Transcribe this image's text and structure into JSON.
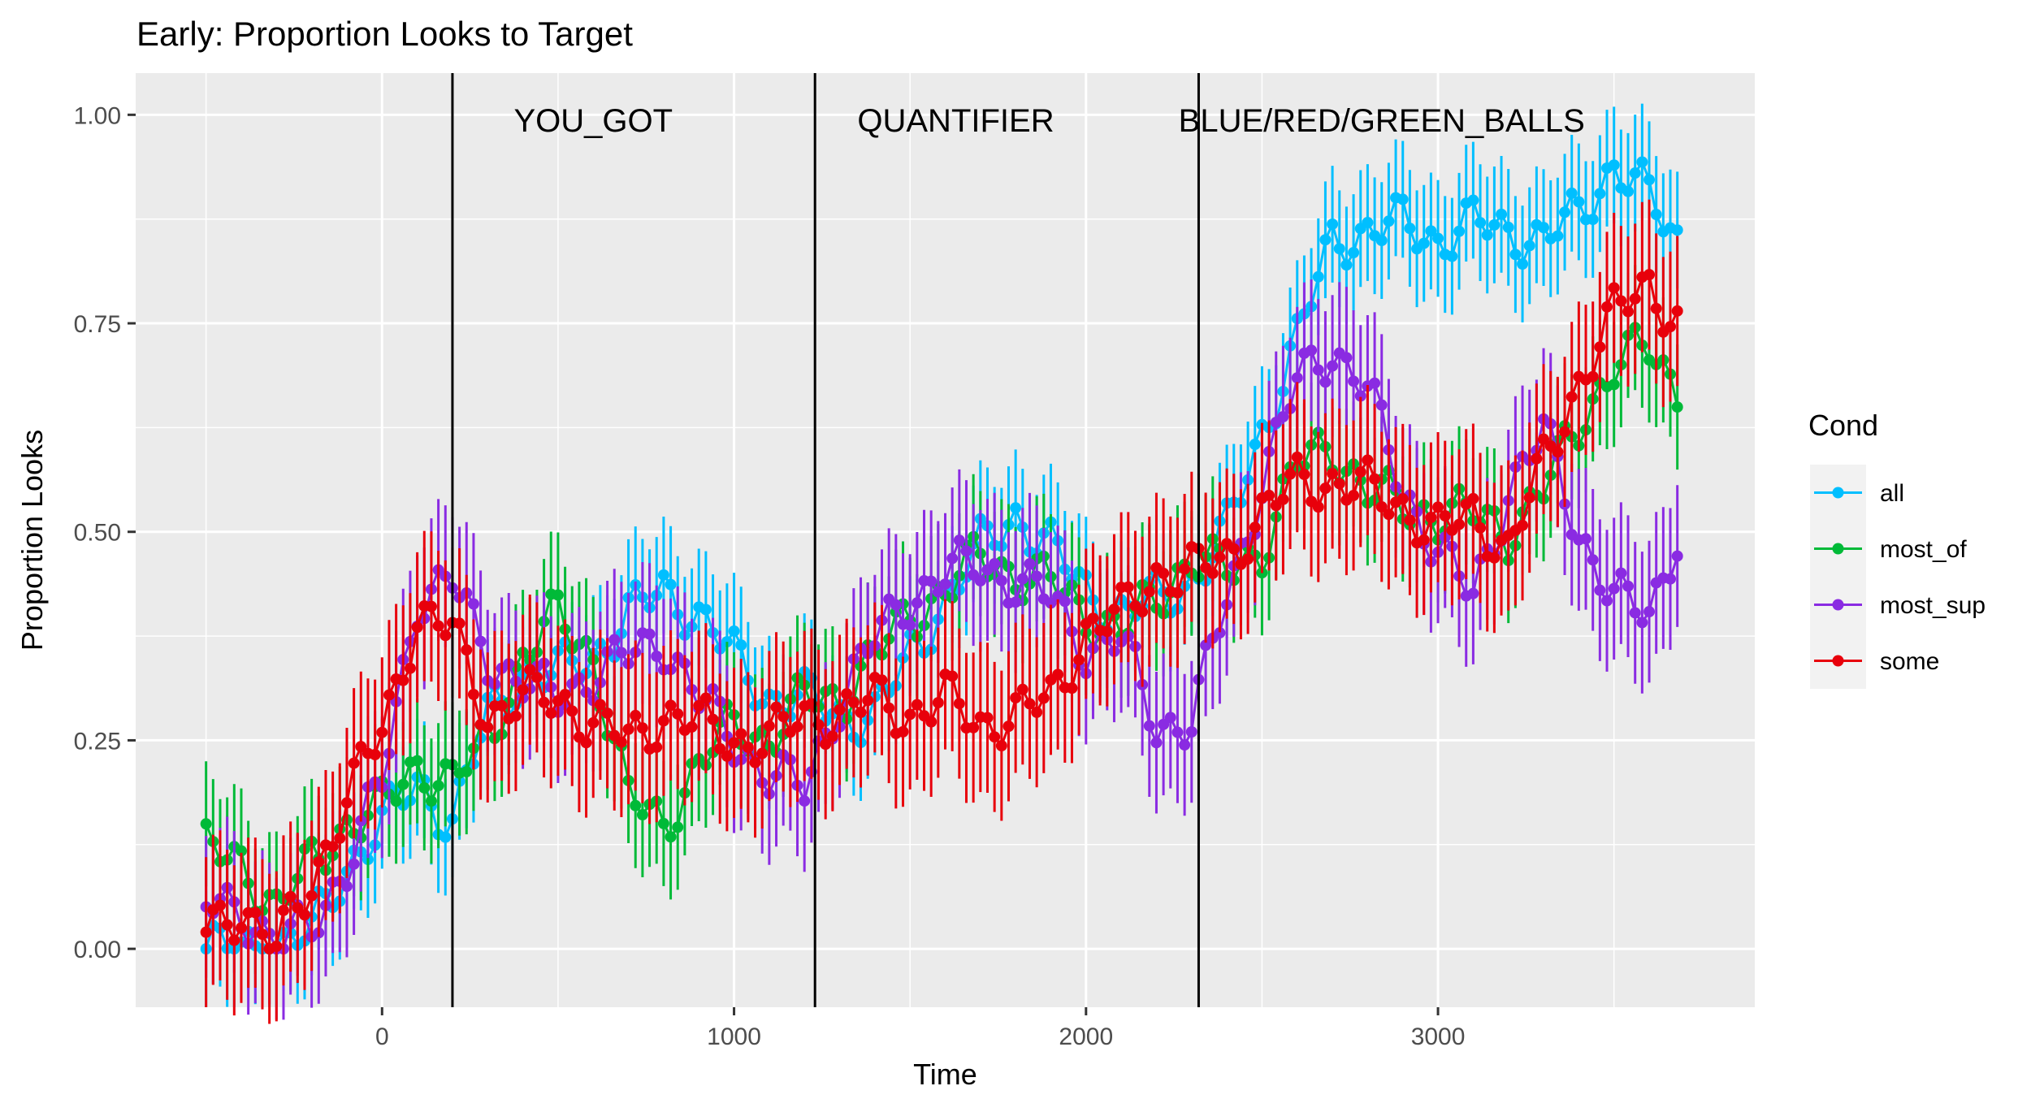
{
  "chart_data": {
    "type": "line",
    "title": "Early: Proportion Looks to Target",
    "xlabel": "Time",
    "ylabel": "Proportion Looks",
    "xlim": [
      -700,
      3900
    ],
    "ylim": [
      -0.07,
      1.05
    ],
    "x_ticks": [
      0,
      1000,
      2000,
      3000
    ],
    "y_ticks": [
      0.0,
      0.25,
      0.5,
      0.75,
      1.0
    ],
    "x_tick_labels": [
      "0",
      "1000",
      "2000",
      "3000"
    ],
    "y_tick_labels": [
      "0.00",
      "0.25",
      "0.50",
      "0.75",
      "1.00"
    ],
    "grid": true,
    "legend": {
      "title": "Cond",
      "position": "right",
      "entries": [
        "all",
        "most_of",
        "most_sup",
        "some"
      ]
    },
    "vlines": [
      200,
      1230,
      2320
    ],
    "region_labels": [
      {
        "x": 600,
        "y": 0.98,
        "text": "YOU_GOT"
      },
      {
        "x": 1630,
        "y": 0.98,
        "text": "QUANTIFIER"
      },
      {
        "x": 2840,
        "y": 0.98,
        "text": "BLUE/RED/GREEN_BALLS"
      }
    ],
    "x_start": -500,
    "x_step": 20,
    "series": [
      {
        "name": "all",
        "color": "#00BFFF",
        "err": 0.07,
        "knots": [
          [
            -500,
            0.0
          ],
          [
            -300,
            0.0
          ],
          [
            -200,
            0.02
          ],
          [
            -100,
            0.1
          ],
          [
            0,
            0.15
          ],
          [
            100,
            0.2
          ],
          [
            200,
            0.15
          ],
          [
            300,
            0.28
          ],
          [
            400,
            0.33
          ],
          [
            500,
            0.33
          ],
          [
            600,
            0.35
          ],
          [
            700,
            0.4
          ],
          [
            800,
            0.43
          ],
          [
            900,
            0.4
          ],
          [
            1000,
            0.35
          ],
          [
            1100,
            0.3
          ],
          [
            1200,
            0.3
          ],
          [
            1300,
            0.28
          ],
          [
            1400,
            0.28
          ],
          [
            1500,
            0.35
          ],
          [
            1600,
            0.42
          ],
          [
            1700,
            0.48
          ],
          [
            1800,
            0.52
          ],
          [
            1900,
            0.48
          ],
          [
            2000,
            0.43
          ],
          [
            2100,
            0.4
          ],
          [
            2200,
            0.42
          ],
          [
            2300,
            0.44
          ],
          [
            2400,
            0.5
          ],
          [
            2500,
            0.62
          ],
          [
            2600,
            0.73
          ],
          [
            2700,
            0.85
          ],
          [
            2800,
            0.86
          ],
          [
            2900,
            0.87
          ],
          [
            3000,
            0.85
          ],
          [
            3100,
            0.87
          ],
          [
            3200,
            0.86
          ],
          [
            3300,
            0.85
          ],
          [
            3400,
            0.88
          ],
          [
            3500,
            0.94
          ],
          [
            3600,
            0.9
          ],
          [
            3680,
            0.85
          ]
        ]
      },
      {
        "name": "most_of",
        "color": "#00BA38",
        "err": 0.075,
        "knots": [
          [
            -500,
            0.12
          ],
          [
            -400,
            0.1
          ],
          [
            -300,
            0.05
          ],
          [
            -200,
            0.1
          ],
          [
            -100,
            0.15
          ],
          [
            0,
            0.17
          ],
          [
            100,
            0.22
          ],
          [
            200,
            0.2
          ],
          [
            300,
            0.25
          ],
          [
            400,
            0.35
          ],
          [
            500,
            0.4
          ],
          [
            600,
            0.35
          ],
          [
            700,
            0.18
          ],
          [
            800,
            0.15
          ],
          [
            900,
            0.22
          ],
          [
            1000,
            0.27
          ],
          [
            1100,
            0.25
          ],
          [
            1200,
            0.3
          ],
          [
            1300,
            0.3
          ],
          [
            1400,
            0.35
          ],
          [
            1500,
            0.4
          ],
          [
            1600,
            0.43
          ],
          [
            1700,
            0.47
          ],
          [
            1800,
            0.45
          ],
          [
            1900,
            0.44
          ],
          [
            2000,
            0.4
          ],
          [
            2100,
            0.38
          ],
          [
            2200,
            0.42
          ],
          [
            2300,
            0.47
          ],
          [
            2400,
            0.45
          ],
          [
            2500,
            0.48
          ],
          [
            2600,
            0.58
          ],
          [
            2700,
            0.6
          ],
          [
            2800,
            0.55
          ],
          [
            2900,
            0.53
          ],
          [
            3000,
            0.52
          ],
          [
            3100,
            0.52
          ],
          [
            3200,
            0.5
          ],
          [
            3300,
            0.55
          ],
          [
            3400,
            0.63
          ],
          [
            3500,
            0.7
          ],
          [
            3600,
            0.72
          ],
          [
            3680,
            0.67
          ]
        ]
      },
      {
        "name": "most_sup",
        "color": "#8A2BE2",
        "err": 0.085,
        "knots": [
          [
            -500,
            0.05
          ],
          [
            -400,
            0.05
          ],
          [
            -300,
            0.0
          ],
          [
            -200,
            0.03
          ],
          [
            -100,
            0.1
          ],
          [
            0,
            0.2
          ],
          [
            100,
            0.42
          ],
          [
            200,
            0.44
          ],
          [
            300,
            0.35
          ],
          [
            400,
            0.32
          ],
          [
            500,
            0.3
          ],
          [
            600,
            0.33
          ],
          [
            700,
            0.35
          ],
          [
            800,
            0.37
          ],
          [
            900,
            0.3
          ],
          [
            1000,
            0.25
          ],
          [
            1100,
            0.21
          ],
          [
            1200,
            0.19
          ],
          [
            1300,
            0.3
          ],
          [
            1400,
            0.37
          ],
          [
            1500,
            0.42
          ],
          [
            1600,
            0.45
          ],
          [
            1700,
            0.46
          ],
          [
            1800,
            0.44
          ],
          [
            1900,
            0.42
          ],
          [
            2000,
            0.36
          ],
          [
            2100,
            0.37
          ],
          [
            2200,
            0.27
          ],
          [
            2300,
            0.27
          ],
          [
            2400,
            0.42
          ],
          [
            2500,
            0.56
          ],
          [
            2600,
            0.68
          ],
          [
            2700,
            0.72
          ],
          [
            2800,
            0.67
          ],
          [
            2900,
            0.55
          ],
          [
            3000,
            0.48
          ],
          [
            3100,
            0.42
          ],
          [
            3200,
            0.55
          ],
          [
            3300,
            0.62
          ],
          [
            3400,
            0.5
          ],
          [
            3500,
            0.42
          ],
          [
            3600,
            0.4
          ],
          [
            3680,
            0.5
          ]
        ]
      },
      {
        "name": "some",
        "color": "#E8000B",
        "err": 0.09,
        "knots": [
          [
            -500,
            0.02
          ],
          [
            -400,
            0.05
          ],
          [
            -300,
            0.0
          ],
          [
            -200,
            0.08
          ],
          [
            -100,
            0.18
          ],
          [
            0,
            0.26
          ],
          [
            100,
            0.4
          ],
          [
            200,
            0.38
          ],
          [
            300,
            0.28
          ],
          [
            400,
            0.3
          ],
          [
            500,
            0.3
          ],
          [
            600,
            0.27
          ],
          [
            700,
            0.25
          ],
          [
            800,
            0.28
          ],
          [
            900,
            0.27
          ],
          [
            1000,
            0.25
          ],
          [
            1100,
            0.25
          ],
          [
            1200,
            0.28
          ],
          [
            1300,
            0.28
          ],
          [
            1400,
            0.3
          ],
          [
            1500,
            0.28
          ],
          [
            1600,
            0.3
          ],
          [
            1700,
            0.27
          ],
          [
            1800,
            0.28
          ],
          [
            1900,
            0.3
          ],
          [
            2000,
            0.38
          ],
          [
            2100,
            0.4
          ],
          [
            2200,
            0.45
          ],
          [
            2300,
            0.45
          ],
          [
            2400,
            0.47
          ],
          [
            2500,
            0.52
          ],
          [
            2600,
            0.56
          ],
          [
            2700,
            0.56
          ],
          [
            2800,
            0.55
          ],
          [
            2900,
            0.53
          ],
          [
            3000,
            0.5
          ],
          [
            3100,
            0.52
          ],
          [
            3200,
            0.48
          ],
          [
            3300,
            0.58
          ],
          [
            3400,
            0.68
          ],
          [
            3500,
            0.76
          ],
          [
            3600,
            0.8
          ],
          [
            3680,
            0.75
          ]
        ]
      }
    ]
  }
}
